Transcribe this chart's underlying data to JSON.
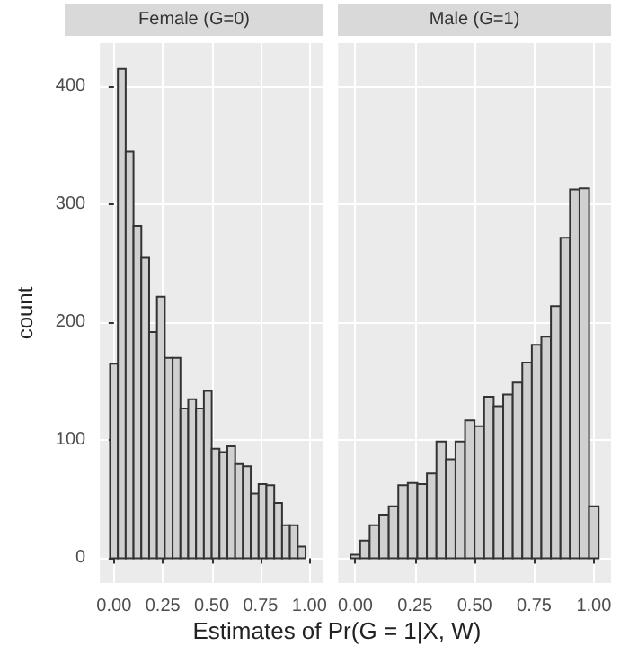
{
  "chart_data": [
    {
      "type": "histogram",
      "title": "Female (G=0)",
      "xlabel": "Estimates of Pr(G = 1|X, W)",
      "ylabel": "count",
      "color": "#d0d0d0",
      "grid": true,
      "bins": [
        -0.02,
        0.02,
        0.06,
        0.1,
        0.14,
        0.18,
        0.22,
        0.26,
        0.3,
        0.34,
        0.38,
        0.42,
        0.46,
        0.5,
        0.54,
        0.58,
        0.62,
        0.66,
        0.7,
        0.74,
        0.78,
        0.82,
        0.86,
        0.9,
        0.94,
        0.98,
        1.02
      ],
      "values": [
        165,
        415,
        345,
        282,
        255,
        192,
        222,
        170,
        170,
        127,
        135,
        127,
        142,
        93,
        90,
        95,
        80,
        78,
        55,
        63,
        62,
        47,
        28,
        28,
        10,
        0
      ],
      "xlim": [
        -0.072,
        1.072
      ],
      "ylim": [
        -21,
        437
      ],
      "xticks": [
        {
          "value": 0,
          "label": "0.00"
        },
        {
          "value": 0.25,
          "label": "0.25"
        },
        {
          "value": 0.5,
          "label": "0.50"
        },
        {
          "value": 0.75,
          "label": "0.75"
        },
        {
          "value": 1,
          "label": "1.00"
        }
      ],
      "yticks": [
        0,
        100,
        200,
        300,
        400
      ]
    },
    {
      "type": "histogram",
      "title": "Male (G=1)",
      "color": "#d0d0d0",
      "grid": true,
      "tick_labels": "x",
      "bins": [
        -0.02,
        0.02,
        0.06,
        0.1,
        0.14,
        0.18,
        0.22,
        0.26,
        0.3,
        0.34,
        0.38,
        0.42,
        0.46,
        0.5,
        0.54,
        0.58,
        0.62,
        0.66,
        0.7,
        0.74,
        0.78,
        0.82,
        0.86,
        0.9,
        0.94,
        0.98,
        1.02
      ],
      "values": [
        3,
        15,
        28,
        37,
        44,
        62,
        64,
        63,
        72,
        99,
        84,
        99,
        117,
        112,
        137,
        129,
        139,
        149,
        166,
        181,
        188,
        214,
        272,
        313,
        314,
        44
      ],
      "xlim": [
        -0.072,
        1.072
      ],
      "ylim": [
        -21,
        437
      ],
      "xticks": [
        {
          "value": 0,
          "label": "0.00"
        },
        {
          "value": 0.25,
          "label": "0.25"
        },
        {
          "value": 0.5,
          "label": "0.50"
        },
        {
          "value": 0.75,
          "label": "0.75"
        },
        {
          "value": 1,
          "label": "1.00"
        }
      ],
      "yticks": [
        0,
        100,
        200,
        300,
        400
      ]
    }
  ]
}
